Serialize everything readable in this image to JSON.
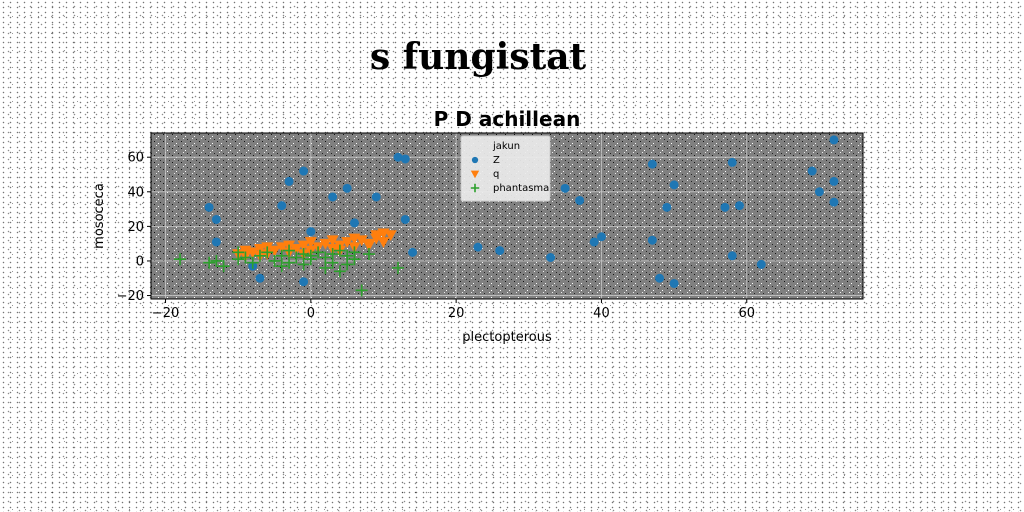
{
  "figure": {
    "suptitle": "s fungistat"
  },
  "chart_data": {
    "type": "scatter",
    "title": "P D achillean",
    "xlabel": "plectopterous",
    "ylabel": "mosoceca",
    "xlim": [
      -22,
      76
    ],
    "ylim": [
      -22,
      74
    ],
    "xticks": [
      -20,
      0,
      20,
      40,
      60
    ],
    "yticks": [
      -20,
      0,
      20,
      40,
      60
    ],
    "grid": true,
    "axes_facecolor": "#808080",
    "legend": {
      "placement": "upper-center",
      "title": "jakun"
    },
    "series": [
      {
        "name": "Z",
        "marker": "circle",
        "color": "#1f77b4",
        "points": [
          [
            -14,
            31
          ],
          [
            -13,
            24
          ],
          [
            -13,
            11
          ],
          [
            -8,
            -3
          ],
          [
            -7,
            -10
          ],
          [
            -3,
            46
          ],
          [
            -4,
            32
          ],
          [
            -1,
            52
          ],
          [
            -1,
            -12
          ],
          [
            0,
            17
          ],
          [
            3,
            37
          ],
          [
            5,
            42
          ],
          [
            6,
            22
          ],
          [
            9,
            37
          ],
          [
            12,
            60
          ],
          [
            13,
            59
          ],
          [
            13,
            24
          ],
          [
            14,
            5
          ],
          [
            23,
            8
          ],
          [
            26,
            6
          ],
          [
            33,
            2
          ],
          [
            35,
            42
          ],
          [
            37,
            35
          ],
          [
            39,
            11
          ],
          [
            40,
            14
          ],
          [
            47,
            56
          ],
          [
            47,
            12
          ],
          [
            48,
            -10
          ],
          [
            49,
            31
          ],
          [
            50,
            44
          ],
          [
            50,
            -13
          ],
          [
            57,
            31
          ],
          [
            58,
            57
          ],
          [
            58,
            3
          ],
          [
            59,
            32
          ],
          [
            62,
            -2
          ],
          [
            69,
            52
          ],
          [
            70,
            40
          ],
          [
            72,
            70
          ],
          [
            72,
            46
          ],
          [
            72,
            34
          ]
        ]
      },
      {
        "name": "q",
        "marker": "triangle-down",
        "color": "#ff7f0e",
        "points": [
          [
            -10,
            4
          ],
          [
            -9,
            6
          ],
          [
            -8,
            5
          ],
          [
            -7,
            7
          ],
          [
            -6,
            4
          ],
          [
            -5,
            6
          ],
          [
            -4,
            8
          ],
          [
            -3,
            5
          ],
          [
            -2,
            7
          ],
          [
            -1,
            9
          ],
          [
            0,
            6
          ],
          [
            1,
            8
          ],
          [
            2,
            10
          ],
          [
            3,
            7
          ],
          [
            4,
            9
          ],
          [
            5,
            11
          ],
          [
            6,
            8
          ],
          [
            7,
            12
          ],
          [
            8,
            10
          ],
          [
            9,
            13
          ],
          [
            10,
            11
          ],
          [
            11,
            15
          ],
          [
            -9,
            3
          ],
          [
            -6,
            8
          ],
          [
            -3,
            9
          ],
          [
            0,
            11
          ],
          [
            3,
            12
          ],
          [
            6,
            13
          ],
          [
            9,
            15
          ],
          [
            10,
            16
          ],
          [
            -7,
            3
          ],
          [
            -1,
            4
          ],
          [
            4,
            6
          ],
          [
            8,
            9
          ]
        ]
      },
      {
        "name": "phantasma",
        "marker": "plus",
        "color": "#2ca02c",
        "points": [
          [
            -18,
            1
          ],
          [
            -14,
            -1
          ],
          [
            -13,
            0
          ],
          [
            -12,
            -3
          ],
          [
            -10,
            5
          ],
          [
            -10,
            1
          ],
          [
            -9,
            2
          ],
          [
            -8,
            -1
          ],
          [
            -7,
            3
          ],
          [
            -6,
            5
          ],
          [
            -5,
            0
          ],
          [
            -4,
            3
          ],
          [
            -3,
            6
          ],
          [
            -3,
            -1
          ],
          [
            -2,
            2
          ],
          [
            -1,
            -2
          ],
          [
            -1,
            4
          ],
          [
            0,
            1
          ],
          [
            1,
            5
          ],
          [
            2,
            -4
          ],
          [
            2,
            2
          ],
          [
            3,
            -1
          ],
          [
            4,
            6
          ],
          [
            4,
            -6
          ],
          [
            5,
            3
          ],
          [
            5,
            -2
          ],
          [
            6,
            1
          ],
          [
            7,
            -17
          ],
          [
            8,
            4
          ],
          [
            12,
            -4
          ],
          [
            -4,
            -3
          ],
          [
            0,
            3
          ],
          [
            3,
            4
          ],
          [
            6,
            5
          ]
        ]
      }
    ]
  }
}
